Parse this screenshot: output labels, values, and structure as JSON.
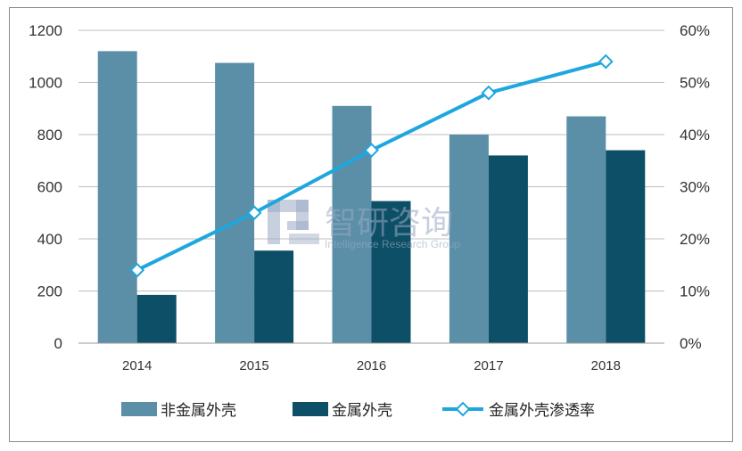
{
  "chart_data": {
    "type": "bar",
    "categories": [
      "2014",
      "2015",
      "2016",
      "2017",
      "2018"
    ],
    "series": [
      {
        "name": "非金属外壳",
        "type": "bar",
        "axis": "left",
        "color": "#5b8fa8",
        "values": [
          1120,
          1075,
          910,
          800,
          870
        ]
      },
      {
        "name": "金属外壳",
        "type": "bar",
        "axis": "left",
        "color": "#0d4f66",
        "values": [
          185,
          355,
          545,
          720,
          740
        ]
      },
      {
        "name": "金属外壳渗透率",
        "type": "line",
        "axis": "right",
        "color": "#1ea7de",
        "values": [
          0.14,
          0.25,
          0.37,
          0.48,
          0.54
        ]
      }
    ],
    "ylim": [
      0,
      1200
    ],
    "y_ticks": [
      "0",
      "200",
      "400",
      "600",
      "800",
      "1000",
      "1200"
    ],
    "y2lim": [
      0,
      0.6
    ],
    "y2_ticks": [
      "0%",
      "10%",
      "20%",
      "30%",
      "40%",
      "50%",
      "60%"
    ],
    "grid": true,
    "legend": "bottom"
  },
  "watermark": {
    "text_cn": "智研咨询",
    "text_en": "Intelligence Research Group"
  }
}
